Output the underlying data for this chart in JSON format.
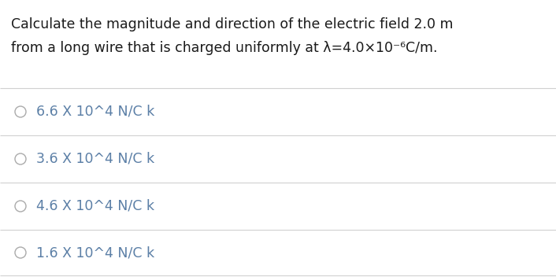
{
  "question_line1": "Calculate the magnitude and direction of the electric field 2.0 m",
  "question_line2": "from a long wire that is charged uniformly at λ=4.0×10⁻⁶C/m.",
  "options": [
    "6.6 X 10^4 N/C k",
    "3.6 X 10^4 N/C k",
    "4.6 X 10^4 N/C k",
    "1.6 X 10^4 N/C k"
  ],
  "background_color": "#ffffff",
  "question_text_color": "#1a1a1a",
  "option_text_color": "#5b7fa6",
  "line_color": "#d0d0d0",
  "circle_edge_color": "#aaaaaa",
  "question_fontsize": 12.5,
  "option_fontsize": 12.5,
  "font_family": "DejaVu Sans"
}
